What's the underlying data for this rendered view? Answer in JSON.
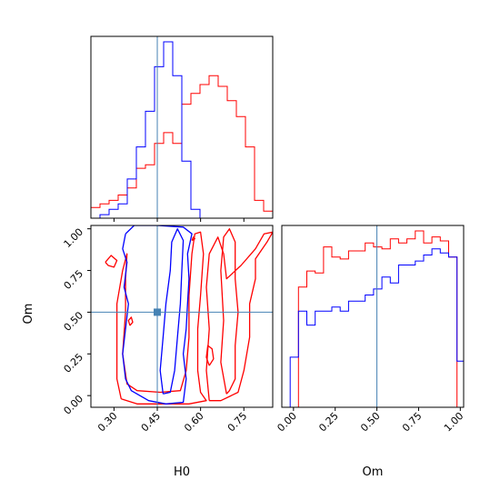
{
  "colors": {
    "red": "#ff0000",
    "blue": "#0000ff",
    "truth": "#4682b4",
    "frame": "#000000"
  },
  "chart_data": [
    {
      "type": "histogram",
      "panel": "H0 marginal",
      "xlim": [
        0.22,
        0.85
      ],
      "bin_edges": [
        0.22,
        0.2515,
        0.283,
        0.3145,
        0.346,
        0.3775,
        0.409,
        0.4405,
        0.472,
        0.5035,
        0.535,
        0.5665,
        0.598,
        0.6295,
        0.661,
        0.6925,
        0.724,
        0.7555,
        0.787,
        0.8185,
        0.85
      ],
      "truth": 0.45,
      "series": [
        {
          "color": "red",
          "values": [
            0.06,
            0.08,
            0.1,
            0.13,
            0.17,
            0.28,
            0.3,
            0.42,
            0.48,
            0.42,
            0.64,
            0.7,
            0.75,
            0.8,
            0.74,
            0.66,
            0.57,
            0.4,
            0.1,
            0.04
          ]
        },
        {
          "color": "blue",
          "values": [
            0.0,
            0.02,
            0.05,
            0.08,
            0.22,
            0.4,
            0.6,
            0.85,
            0.99,
            0.8,
            0.32,
            0.05,
            0.0,
            0.0,
            0.0,
            0.0,
            0.0,
            0.0,
            0.0,
            0.0
          ]
        }
      ]
    },
    {
      "type": "histogram",
      "panel": "Om marginal",
      "xlabel": "Om",
      "xlim": [
        -0.07,
        1.02
      ],
      "xticks": [
        "0.00",
        "0.25",
        "0.50",
        "0.75",
        "1.00"
      ],
      "xtick_values": [
        0,
        0.25,
        0.5,
        0.75,
        1.0
      ],
      "bin_edges": [
        -0.07,
        -0.02,
        0.03,
        0.08,
        0.13,
        0.18,
        0.23,
        0.28,
        0.33,
        0.38,
        0.43,
        0.48,
        0.53,
        0.58,
        0.63,
        0.68,
        0.73,
        0.78,
        0.83,
        0.88,
        0.93,
        0.98,
        1.02
      ],
      "truth": 0.5,
      "series": [
        {
          "color": "red",
          "values": [
            0.0,
            0.0,
            0.6,
            0.68,
            0.67,
            0.8,
            0.75,
            0.74,
            0.78,
            0.78,
            0.82,
            0.8,
            0.79,
            0.84,
            0.82,
            0.84,
            0.88,
            0.82,
            0.85,
            0.83,
            0.75,
            0.0
          ]
        },
        {
          "color": "blue",
          "values": [
            0.0,
            0.25,
            0.48,
            0.41,
            0.48,
            0.48,
            0.5,
            0.48,
            0.53,
            0.53,
            0.56,
            0.59,
            0.65,
            0.62,
            0.71,
            0.71,
            0.73,
            0.76,
            0.79,
            0.77,
            0.75,
            0.23
          ]
        }
      ]
    },
    {
      "type": "contour",
      "panel": "H0 vs Om",
      "xlabel": "H0",
      "ylabel": "Om",
      "xlim": [
        0.22,
        0.85
      ],
      "ylim": [
        -0.07,
        1.02
      ],
      "xticks": [
        "0.30",
        "0.45",
        "0.60",
        "0.75"
      ],
      "xtick_values": [
        0.3,
        0.45,
        0.6,
        0.75
      ],
      "yticks": [
        "0.00",
        "0.25",
        "0.50",
        "0.75",
        "1.00"
      ],
      "ytick_values": [
        0,
        0.25,
        0.5,
        0.75,
        1.0
      ],
      "truth": {
        "x": 0.45,
        "y": 0.5
      },
      "contours": [
        {
          "color": "red",
          "points": [
            [
              0.325,
              -0.02
            ],
            [
              0.31,
              0.1
            ],
            [
              0.31,
              0.3
            ],
            [
              0.31,
              0.55
            ],
            [
              0.33,
              0.75
            ],
            [
              0.345,
              0.85
            ],
            [
              0.34,
              0.7
            ],
            [
              0.34,
              0.5
            ],
            [
              0.33,
              0.25
            ],
            [
              0.345,
              0.07
            ],
            [
              0.38,
              0.03
            ],
            [
              0.46,
              0.02
            ],
            [
              0.53,
              0.03
            ],
            [
              0.55,
              0.15
            ],
            [
              0.56,
              0.35
            ],
            [
              0.56,
              0.6
            ],
            [
              0.57,
              0.85
            ],
            [
              0.58,
              0.97
            ],
            [
              0.6,
              0.98
            ],
            [
              0.61,
              0.85
            ],
            [
              0.6,
              0.6
            ],
            [
              0.59,
              0.4
            ],
            [
              0.59,
              0.15
            ],
            [
              0.6,
              0.02
            ],
            [
              0.62,
              -0.03
            ],
            [
              0.56,
              -0.05
            ],
            [
              0.45,
              -0.05
            ],
            [
              0.38,
              -0.05
            ],
            [
              0.325,
              -0.02
            ]
          ]
        },
        {
          "color": "red",
          "points": [
            [
              0.63,
              -0.03
            ],
            [
              0.62,
              0.15
            ],
            [
              0.63,
              0.4
            ],
            [
              0.62,
              0.65
            ],
            [
              0.63,
              0.85
            ],
            [
              0.66,
              0.95
            ],
            [
              0.68,
              0.85
            ],
            [
              0.69,
              0.7
            ],
            [
              0.74,
              0.78
            ],
            [
              0.79,
              0.88
            ],
            [
              0.82,
              0.97
            ],
            [
              0.85,
              0.98
            ],
            [
              0.83,
              0.92
            ],
            [
              0.79,
              0.82
            ],
            [
              0.79,
              0.7
            ],
            [
              0.77,
              0.55
            ],
            [
              0.77,
              0.35
            ],
            [
              0.75,
              0.15
            ],
            [
              0.73,
              0.02
            ],
            [
              0.67,
              -0.03
            ],
            [
              0.63,
              -0.03
            ]
          ]
        },
        {
          "color": "red",
          "points": [
            [
              0.69,
              0.01
            ],
            [
              0.67,
              0.2
            ],
            [
              0.68,
              0.45
            ],
            [
              0.67,
              0.75
            ],
            [
              0.68,
              0.95
            ],
            [
              0.7,
              1.0
            ],
            [
              0.72,
              0.92
            ],
            [
              0.72,
              0.7
            ],
            [
              0.73,
              0.5
            ],
            [
              0.72,
              0.3
            ],
            [
              0.72,
              0.1
            ],
            [
              0.7,
              0.03
            ],
            [
              0.69,
              0.01
            ]
          ]
        },
        {
          "color": "red",
          "points": [
            [
              0.63,
              0.18
            ],
            [
              0.62,
              0.23
            ],
            [
              0.625,
              0.3
            ],
            [
              0.64,
              0.28
            ],
            [
              0.645,
              0.22
            ],
            [
              0.63,
              0.18
            ]
          ]
        },
        {
          "color": "red",
          "points": [
            [
              0.27,
              0.8
            ],
            [
              0.29,
              0.84
            ],
            [
              0.31,
              0.81
            ],
            [
              0.3,
              0.77
            ],
            [
              0.28,
              0.78
            ],
            [
              0.27,
              0.8
            ]
          ]
        },
        {
          "color": "red",
          "points": [
            [
              0.355,
              0.42
            ],
            [
              0.35,
              0.45
            ],
            [
              0.36,
              0.47
            ],
            [
              0.365,
              0.44
            ],
            [
              0.355,
              0.42
            ]
          ]
        },
        {
          "color": "red",
          "points": [
            [
              0.57,
              0.93
            ],
            [
              0.575,
              0.95
            ],
            [
              0.58,
              0.94
            ],
            [
              0.57,
              0.93
            ]
          ]
        },
        {
          "color": "blue",
          "points": [
            [
              0.34,
              0.97
            ],
            [
              0.33,
              0.88
            ],
            [
              0.345,
              0.8
            ],
            [
              0.335,
              0.65
            ],
            [
              0.35,
              0.55
            ],
            [
              0.34,
              0.4
            ],
            [
              0.33,
              0.25
            ],
            [
              0.34,
              0.1
            ],
            [
              0.36,
              0.03
            ],
            [
              0.42,
              -0.03
            ],
            [
              0.48,
              -0.05
            ],
            [
              0.54,
              -0.04
            ],
            [
              0.55,
              0.1
            ],
            [
              0.54,
              0.25
            ],
            [
              0.55,
              0.4
            ],
            [
              0.555,
              0.55
            ],
            [
              0.56,
              0.7
            ],
            [
              0.555,
              0.85
            ],
            [
              0.57,
              0.97
            ],
            [
              0.54,
              1.01
            ],
            [
              0.45,
              1.02
            ],
            [
              0.37,
              1.02
            ],
            [
              0.34,
              0.97
            ]
          ]
        },
        {
          "color": "blue",
          "points": [
            [
              0.47,
              0.01
            ],
            [
              0.46,
              0.15
            ],
            [
              0.47,
              0.35
            ],
            [
              0.48,
              0.55
            ],
            [
              0.495,
              0.75
            ],
            [
              0.5,
              0.92
            ],
            [
              0.52,
              1.0
            ],
            [
              0.54,
              0.93
            ],
            [
              0.535,
              0.75
            ],
            [
              0.53,
              0.55
            ],
            [
              0.52,
              0.35
            ],
            [
              0.51,
              0.15
            ],
            [
              0.495,
              0.02
            ],
            [
              0.47,
              0.01
            ]
          ]
        }
      ]
    }
  ]
}
